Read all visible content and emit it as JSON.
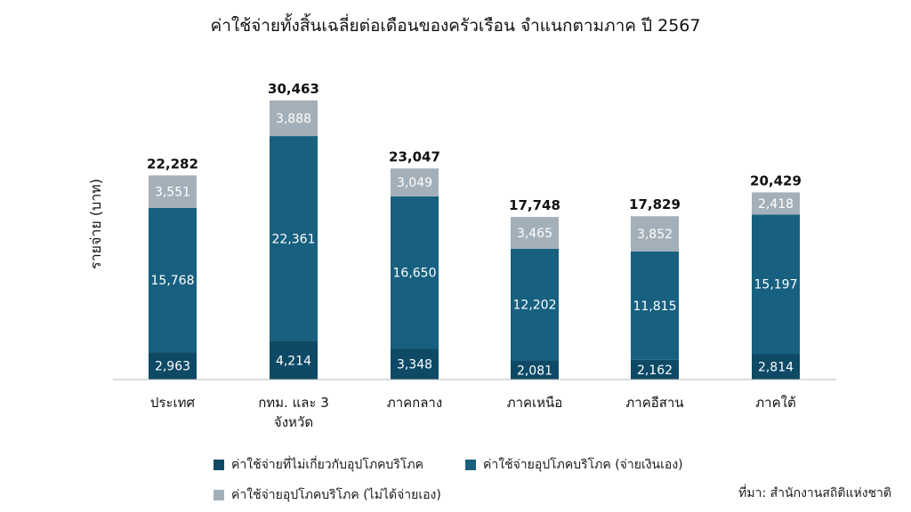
{
  "chart_data": {
    "type": "bar",
    "stacked": true,
    "title": "ค่าใช้จ่ายทั้งสิ้นเฉลี่ยต่อเดือนของครัวเรือน จำแนกตามภาค ปี 2567",
    "ylabel": "รายจ่าย (บาท)",
    "xlabel": "",
    "categories": [
      "ประเทศ",
      "กทม. และ 3 จังหวัด",
      "ภาคกลาง",
      "ภาคเหนือ",
      "ภาคอีสาน",
      "ภาคใต้"
    ],
    "totals": [
      "22,282",
      "30,463",
      "23,047",
      "17,748",
      "17,829",
      "20,429"
    ],
    "series": [
      {
        "name": "ค่าใช้จ่ายที่ไม่เกี่ยวกับอุปโภคบริโภค",
        "color": "#0e4a66",
        "values": [
          2963,
          4214,
          3348,
          2081,
          2162,
          2814
        ],
        "labels": [
          "2,963",
          "4,214",
          "3,348",
          "2,081",
          "2,162",
          "2,814"
        ]
      },
      {
        "name": "ค่าใช้จ่ายอุปโภคบริโภค (จ่ายเงินเอง)",
        "color": "#17607f",
        "values": [
          15768,
          22361,
          16650,
          12202,
          11815,
          15197
        ],
        "labels": [
          "15,768",
          "22,361",
          "16,650",
          "12,202",
          "11,815",
          "15,197"
        ]
      },
      {
        "name": "ค่าใช้จ่ายอุปโภคบริโภค (ไม่ได้จ่ายเอง)",
        "color": "#a4b0b9",
        "values": [
          3551,
          3888,
          3049,
          3465,
          3852,
          2418
        ],
        "labels": [
          "3,551",
          "3,888",
          "3,049",
          "3,465",
          "3,852",
          "2,418"
        ]
      }
    ],
    "ylim": [
      0,
      31000
    ],
    "grid": false,
    "legend_position": "bottom"
  },
  "source": "ที่มา: สำนักงานสถิติแห่งชาติ"
}
